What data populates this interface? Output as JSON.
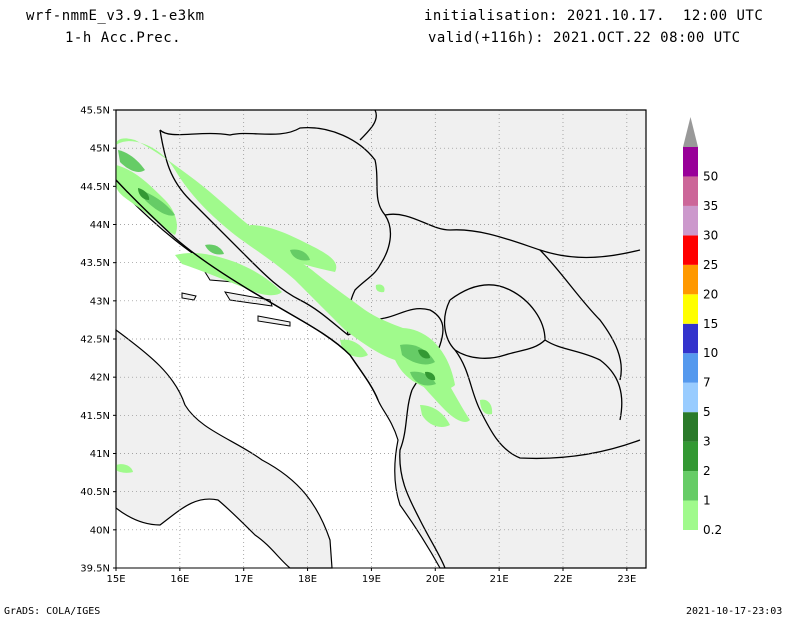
{
  "header": {
    "model": "wrf-nmmE_v3.9.1-e3km",
    "product": "1-h Acc.Prec.",
    "init_label": "initialisation: 2021.10.17.  12:00 UTC",
    "valid_label": "valid(+116h): 2021.OCT.22 08:00 UTC"
  },
  "footer": {
    "credit": "GrADS: COLA/IGES",
    "timestamp": "2021-10-17-23:03"
  },
  "map": {
    "lat_labels": [
      "45.5N",
      "45N",
      "44.5N",
      "44N",
      "43.5N",
      "43N",
      "42.5N",
      "42N",
      "41.5N",
      "41N",
      "40.5N",
      "40N",
      "39.5N"
    ],
    "lon_labels": [
      "15E",
      "16E",
      "17E",
      "18E",
      "19E",
      "20E",
      "21E",
      "22E",
      "23E"
    ],
    "lat_range": [
      39.5,
      45.5
    ],
    "lon_range": [
      15,
      23.3
    ],
    "land_color": "#f0f0f0",
    "border_color": "#000000",
    "grid": "dotted"
  },
  "colorbar": {
    "levels": [
      "0.2",
      "1",
      "2",
      "3",
      "5",
      "7",
      "10",
      "15",
      "20",
      "25",
      "30",
      "35",
      "50"
    ],
    "colors": [
      "#a0fa8c",
      "#66cc66",
      "#339933",
      "#2a7a2a",
      "#99ccff",
      "#5599ee",
      "#3333cc",
      "#ffff00",
      "#ff9900",
      "#ff0000",
      "#cc99cc",
      "#cc6699",
      "#990099"
    ],
    "arrow_color": "#999999"
  }
}
